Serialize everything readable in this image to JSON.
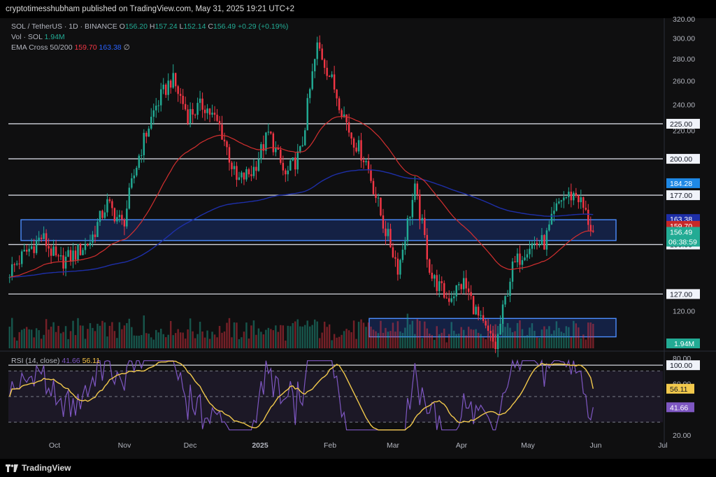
{
  "publication": "cryptotimesshubham published on TradingView.com, May 31, 2025 19:21 UTC+2",
  "footer_brand": "TradingView",
  "legend": {
    "symbol": "SOL / TetherUS · 1D · BINANCE",
    "ohlc": {
      "open_label": "O",
      "open": "156.20",
      "high_label": "H",
      "high": "157.24",
      "low_label": "L",
      "low": "152.14",
      "close_label": "C",
      "close": "156.49",
      "change": "+0.29 (+0.19%)"
    },
    "volume": {
      "label": "Vol · SOL",
      "value": "1.94M"
    },
    "ema": {
      "label": "EMA Cross 50/200",
      "ema50": "159.70",
      "ema200": "163.38",
      "suffix": "∅"
    }
  },
  "rsi_legend": {
    "label": "RSI (14, close)",
    "rsi": "41.66",
    "ma": "56.11"
  },
  "colors": {
    "up": "#22ab94",
    "down": "#f23645",
    "ema50": "#d32f2f",
    "ema200": "#1e2fa8",
    "rsi": "#7e57c2",
    "rsi_ma": "#f2c94c",
    "zone": "#2962ff"
  },
  "chart_data": {
    "type": "candlestick",
    "symbol": "SOL/USDT",
    "timeframe": "1D",
    "x_ticks": [
      "Oct",
      "Nov",
      "Dec",
      "2025",
      "Feb",
      "Mar",
      "Apr",
      "May",
      "Jun",
      "Jul"
    ],
    "y_ticks": [
      "320.00",
      "300.00",
      "280.00",
      "260.00",
      "240.00",
      "220.00",
      "200.00",
      "150.00",
      "120.00",
      "100.00"
    ],
    "y_range": [
      80,
      325
    ],
    "horizontal_levels": [
      {
        "value": 225,
        "label": "225.00"
      },
      {
        "value": 200,
        "label": "200.00"
      },
      {
        "value": 177,
        "label": "177.00"
      },
      {
        "value": 150,
        "label": "150.00"
      },
      {
        "value": 127,
        "label": "127.00"
      },
      {
        "value": 100,
        "label": "100.00"
      }
    ],
    "zones": [
      {
        "top": 163,
        "bottom": 152
      },
      {
        "top": 117,
        "bottom": 110
      }
    ],
    "price_badges": [
      {
        "value": 184.28,
        "label": "184.28",
        "color": "#1e88e5"
      },
      {
        "value": 163.38,
        "label": "163.38",
        "color": "#1e2fa8"
      },
      {
        "value": 159.7,
        "label": "159.70",
        "color": "#c62828"
      },
      {
        "value": 156.49,
        "label": "156.49",
        "sublabel": "06:38:59",
        "color": "#22ab94"
      }
    ],
    "volume_badge": "1.94M",
    "close_path": [
      {
        "month": "Sep",
        "value": 137
      },
      {
        "month": "Sep",
        "value": 146
      },
      {
        "month": "Oct",
        "value": 154
      },
      {
        "month": "Oct",
        "value": 141
      },
      {
        "month": "Oct",
        "value": 145
      },
      {
        "month": "Oct",
        "value": 152
      },
      {
        "month": "Oct",
        "value": 172
      },
      {
        "month": "Nov",
        "value": 160
      },
      {
        "month": "Nov",
        "value": 203
      },
      {
        "month": "Nov",
        "value": 238
      },
      {
        "month": "Nov",
        "value": 262
      },
      {
        "month": "Dec",
        "value": 232
      },
      {
        "month": "Dec",
        "value": 240
      },
      {
        "month": "Dec",
        "value": 222
      },
      {
        "month": "Dec",
        "value": 185
      },
      {
        "month": "Dec",
        "value": 192
      },
      {
        "month": "2025",
        "value": 218
      },
      {
        "month": "2025",
        "value": 188
      },
      {
        "month": "2025",
        "value": 205
      },
      {
        "month": "2025",
        "value": 293
      },
      {
        "month": "2025",
        "value": 255
      },
      {
        "month": "Feb",
        "value": 218
      },
      {
        "month": "Feb",
        "value": 198
      },
      {
        "month": "Feb",
        "value": 162
      },
      {
        "month": "Feb",
        "value": 138
      },
      {
        "month": "Mar",
        "value": 180
      },
      {
        "month": "Mar",
        "value": 135
      },
      {
        "month": "Mar",
        "value": 125
      },
      {
        "month": "Mar",
        "value": 132
      },
      {
        "month": "Apr",
        "value": 116
      },
      {
        "month": "Apr",
        "value": 106
      },
      {
        "month": "Apr",
        "value": 138
      },
      {
        "month": "May",
        "value": 150
      },
      {
        "month": "May",
        "value": 151
      },
      {
        "month": "May",
        "value": 175
      },
      {
        "month": "May",
        "value": 178
      },
      {
        "month": "May",
        "value": 156
      }
    ],
    "rsi": {
      "y_ticks": [
        "80.00",
        "60.00",
        "20.00"
      ],
      "current": 41.66,
      "ma": 56.11,
      "upper": 70,
      "lower": 30
    }
  }
}
